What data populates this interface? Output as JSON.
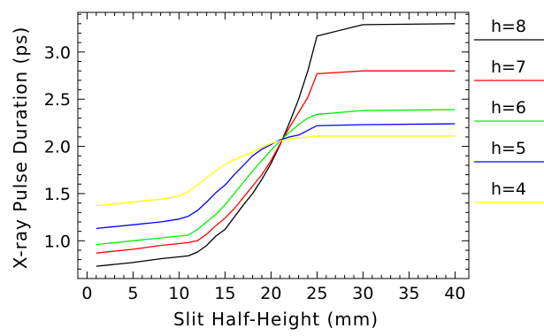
{
  "chart_data": {
    "type": "line",
    "title": "",
    "xlabel": "Slit Half-Height (mm)",
    "ylabel": "X-ray Pulse Duration (ps)",
    "xlim": [
      -1,
      41.5
    ],
    "ylim": [
      0.6,
      3.42
    ],
    "xticks": [
      0,
      5,
      10,
      15,
      20,
      25,
      30,
      35,
      40
    ],
    "xtick_labels": [
      "0",
      "5",
      "10",
      "15",
      "20",
      "25",
      "30",
      "35",
      "40"
    ],
    "yticks": [
      1.0,
      1.5,
      2.0,
      2.5,
      3.0
    ],
    "ytick_labels": [
      "1.0",
      "1.5",
      "2.0",
      "2.5",
      "3.0"
    ],
    "grid": false,
    "legend": "right",
    "series": [
      {
        "name": "h=8",
        "color": "#000000",
        "x": [
          1,
          5,
          8,
          11,
          12,
          13,
          14,
          15,
          16,
          17,
          18,
          19,
          20,
          21,
          22,
          23,
          24,
          25,
          30,
          40
        ],
        "y": [
          0.73,
          0.77,
          0.81,
          0.84,
          0.88,
          0.95,
          1.05,
          1.12,
          1.25,
          1.38,
          1.5,
          1.65,
          1.82,
          2.02,
          2.25,
          2.5,
          2.8,
          3.17,
          3.29,
          3.3
        ]
      },
      {
        "name": "h=7",
        "color": "#ff0000",
        "x": [
          1,
          5,
          8,
          11,
          12,
          13,
          14,
          15,
          16,
          17,
          18,
          19,
          20,
          21,
          22,
          23,
          24,
          25,
          30,
          40
        ],
        "y": [
          0.87,
          0.91,
          0.95,
          0.98,
          1.0,
          1.07,
          1.16,
          1.24,
          1.34,
          1.46,
          1.58,
          1.7,
          1.85,
          2.03,
          2.2,
          2.36,
          2.52,
          2.77,
          2.8,
          2.8
        ]
      },
      {
        "name": "h=6",
        "color": "#00ee00",
        "x": [
          1,
          5,
          8,
          11,
          12,
          13,
          14,
          15,
          16,
          17,
          18,
          19,
          20,
          21,
          22,
          23,
          24,
          25,
          30,
          40
        ],
        "y": [
          0.96,
          1.0,
          1.03,
          1.06,
          1.12,
          1.2,
          1.28,
          1.38,
          1.5,
          1.62,
          1.74,
          1.85,
          1.96,
          2.06,
          2.15,
          2.23,
          2.3,
          2.34,
          2.38,
          2.39
        ]
      },
      {
        "name": "h=5",
        "color": "#0000ff",
        "x": [
          1,
          5,
          8,
          10,
          11,
          12,
          13,
          14,
          15,
          16,
          17,
          18,
          19,
          20,
          21,
          22,
          23,
          24,
          25,
          30,
          40
        ],
        "y": [
          1.13,
          1.17,
          1.2,
          1.23,
          1.26,
          1.32,
          1.41,
          1.51,
          1.59,
          1.7,
          1.8,
          1.9,
          1.97,
          2.02,
          2.07,
          2.1,
          2.12,
          2.17,
          2.22,
          2.23,
          2.24
        ]
      },
      {
        "name": "h=4",
        "color": "#ffff00",
        "x": [
          1,
          5,
          8,
          10,
          11,
          12,
          13,
          14,
          15,
          16,
          17,
          18,
          19,
          20,
          21,
          22,
          23,
          24,
          25,
          30,
          40
        ],
        "y": [
          1.37,
          1.41,
          1.44,
          1.47,
          1.52,
          1.59,
          1.67,
          1.74,
          1.81,
          1.86,
          1.9,
          1.94,
          1.99,
          2.03,
          2.06,
          2.08,
          2.09,
          2.1,
          2.11,
          2.11,
          2.11
        ]
      }
    ]
  }
}
